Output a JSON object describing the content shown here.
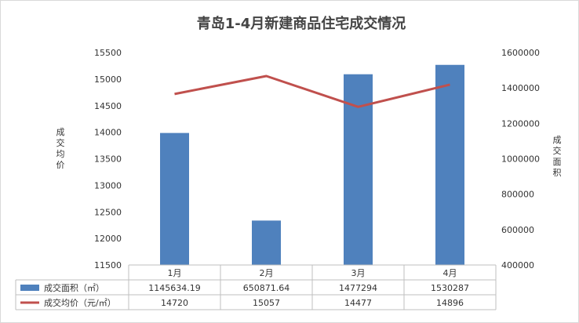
{
  "chart_data": {
    "type": "bar",
    "title": "青岛1-4月新建商品住宅成交情况",
    "categories": [
      "1月",
      "2月",
      "3月",
      "4月"
    ],
    "y_left": {
      "label": "成交均价",
      "ylim": [
        11500,
        15500
      ],
      "ticks": [
        11500,
        12000,
        12500,
        13000,
        13500,
        14000,
        14500,
        15000,
        15500
      ]
    },
    "y_right": {
      "label": "成交面积",
      "ylim": [
        400000,
        1600000
      ],
      "ticks": [
        400000,
        600000,
        800000,
        1000000,
        1200000,
        1400000,
        1600000
      ]
    },
    "series": [
      {
        "name": "成交面积（㎡）",
        "type": "bar",
        "axis": "right",
        "color": "#4f81bd",
        "values": [
          1145634.19,
          650871.64,
          1477294,
          1530287
        ],
        "labels": [
          "1145634.19",
          "650871.64",
          "1477294",
          "1530287"
        ]
      },
      {
        "name": "成交均价（元/㎡）",
        "type": "line",
        "axis": "left",
        "color": "#c0504d",
        "values": [
          14720,
          15057,
          14477,
          14896
        ],
        "labels": [
          "14720",
          "15057",
          "14477",
          "14896"
        ]
      }
    ],
    "grid": false,
    "legend": "data-table-below"
  }
}
